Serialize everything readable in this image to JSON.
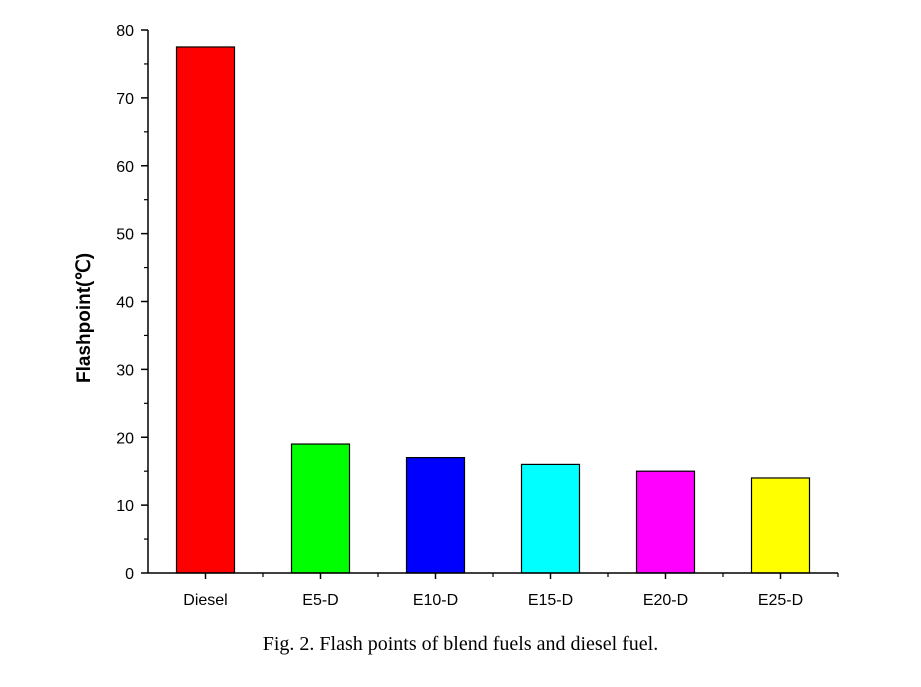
{
  "caption": "Fig. 2. Flash points of blend fuels and diesel fuel.",
  "chart_data": {
    "type": "bar",
    "categories": [
      "Diesel",
      "E5-D",
      "E10-D",
      "E15-D",
      "E20-D",
      "E25-D"
    ],
    "values": [
      77.5,
      19,
      17,
      16,
      15,
      14
    ],
    "colors": [
      "#ff0000",
      "#00ff00",
      "#0000ff",
      "#00ffff",
      "#ff00ff",
      "#ffff00"
    ],
    "ylabel": "Flashpoint(℃)",
    "ylim": [
      0,
      80
    ],
    "yticks": [
      0,
      10,
      20,
      30,
      40,
      50,
      60,
      70,
      80
    ],
    "grid": false
  }
}
